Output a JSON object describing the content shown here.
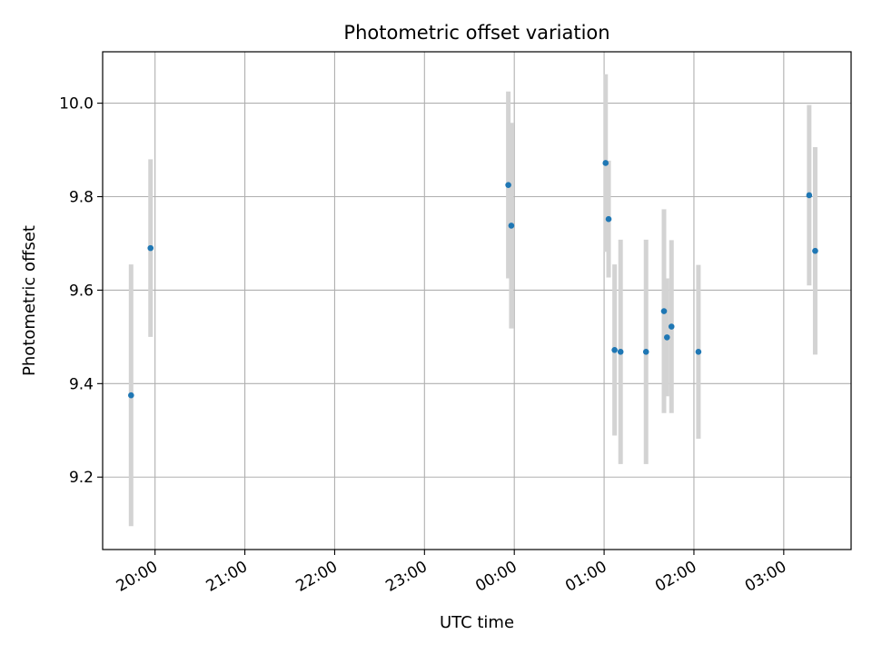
{
  "chart_data": {
    "type": "scatter",
    "title": "Photometric offset variation",
    "xlabel": "UTC time",
    "ylabel": "Photometric offset",
    "x_axis_kind": "time",
    "x_date_range": [
      "19:25",
      "03:45"
    ],
    "x_ticks": [
      "20:00",
      "21:00",
      "22:00",
      "23:00",
      "00:00",
      "01:00",
      "02:00",
      "03:00"
    ],
    "ylim": [
      9.045,
      10.11
    ],
    "y_ticks": [
      9.2,
      9.4,
      9.6,
      9.8,
      10.0
    ],
    "y_tick_labels": [
      "9.2",
      "9.4",
      "9.6",
      "9.8",
      "10.0"
    ],
    "grid": true,
    "series": [
      {
        "color": "#1f77b4",
        "errorbar_color": "#d3d3d3",
        "points": [
          {
            "x": "19:44",
            "y": 9.375,
            "err": 0.28
          },
          {
            "x": "19:57",
            "y": 9.69,
            "err": 0.19
          },
          {
            "x": "23:56",
            "y": 9.825,
            "err": 0.2
          },
          {
            "x": "23:58",
            "y": 9.738,
            "err": 0.22
          },
          {
            "x": "01:01",
            "y": 9.872,
            "err": 0.19
          },
          {
            "x": "01:03",
            "y": 9.752,
            "err": 0.125
          },
          {
            "x": "01:07",
            "y": 9.472,
            "err": 0.183
          },
          {
            "x": "01:11",
            "y": 9.468,
            "err": 0.24
          },
          {
            "x": "01:28",
            "y": 9.468,
            "err": 0.24
          },
          {
            "x": "01:40",
            "y": 9.555,
            "err": 0.218
          },
          {
            "x": "01:42",
            "y": 9.499,
            "err": 0.126
          },
          {
            "x": "01:45",
            "y": 9.522,
            "err": 0.185
          },
          {
            "x": "02:03",
            "y": 9.468,
            "err": 0.186
          },
          {
            "x": "03:17",
            "y": 9.803,
            "err": 0.193
          },
          {
            "x": "03:21",
            "y": 9.684,
            "err": 0.222
          }
        ]
      }
    ]
  }
}
